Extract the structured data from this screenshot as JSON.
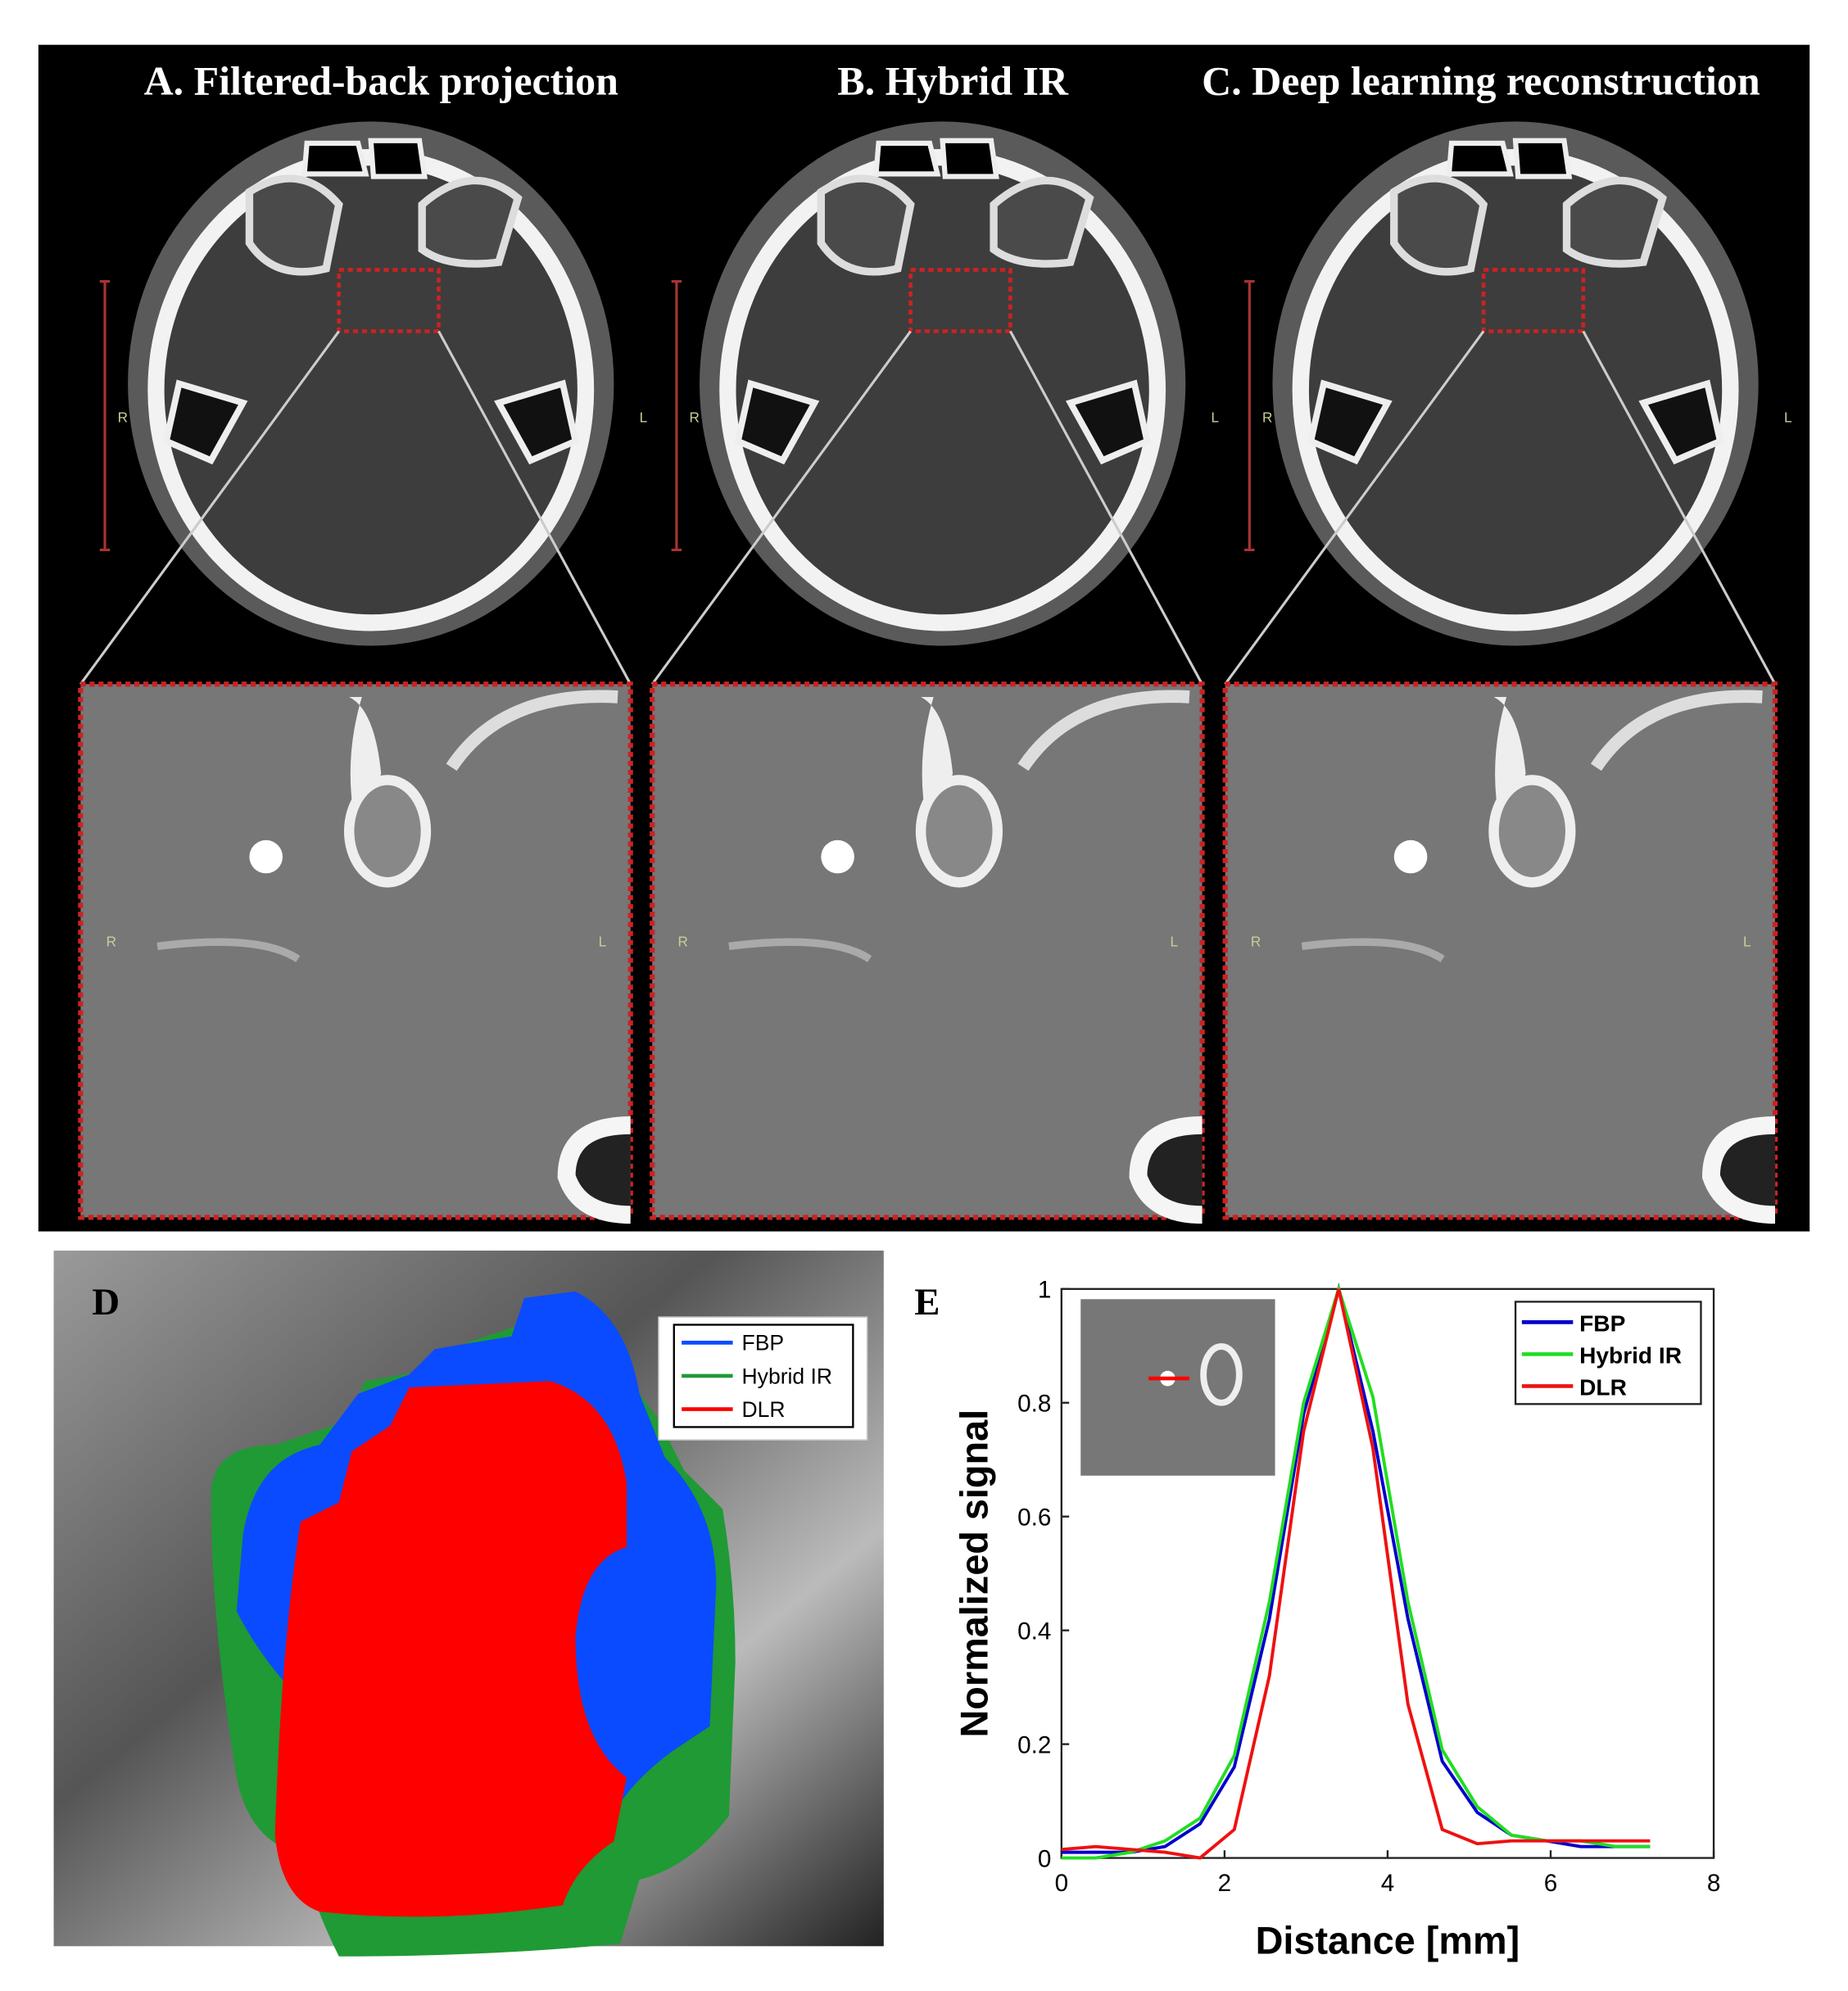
{
  "panels": {
    "a": "A. Filtered-back projection",
    "b": "B. Hybrid IR",
    "c": "C. Deep learning reconstruction",
    "d": "D",
    "e": "E"
  },
  "orientation": [
    "R",
    "L"
  ],
  "segmentation": {
    "series": [
      {
        "name": "FBP",
        "color": "#0a4bff"
      },
      {
        "name": "Hybrid IR",
        "color": "#1f9a35"
      },
      {
        "name": "DLR",
        "color": "#ff0000"
      }
    ]
  },
  "chart_data": {
    "type": "line",
    "xlabel": "Distance [mm]",
    "ylabel": "Normalized signal",
    "x": [
      0,
      0.42,
      0.85,
      1.27,
      1.7,
      2.12,
      2.55,
      2.97,
      3.4,
      3.82,
      4.25,
      4.67,
      5.1,
      5.52,
      5.95,
      6.37,
      6.8,
      7.22
    ],
    "series": [
      {
        "name": "FBP",
        "color": "#0000cc",
        "values": [
          0.01,
          0.01,
          0.01,
          0.02,
          0.06,
          0.16,
          0.42,
          0.78,
          1.0,
          0.75,
          0.42,
          0.17,
          0.08,
          0.04,
          0.03,
          0.02,
          0.02,
          0.02
        ]
      },
      {
        "name": "Hybrid IR",
        "color": "#22dd22",
        "values": [
          0.0,
          0.0,
          0.01,
          0.03,
          0.07,
          0.18,
          0.45,
          0.8,
          1.0,
          0.81,
          0.45,
          0.19,
          0.09,
          0.04,
          0.03,
          0.03,
          0.02,
          0.02
        ]
      },
      {
        "name": "DLR",
        "color": "#ee1111",
        "values": [
          0.015,
          0.02,
          0.015,
          0.01,
          0.0,
          0.05,
          0.32,
          0.75,
          1.0,
          0.72,
          0.27,
          0.05,
          0.025,
          0.03,
          0.03,
          0.03,
          0.03,
          0.03
        ]
      }
    ],
    "xlim": [
      0,
      8
    ],
    "ylim": [
      0,
      1
    ],
    "xticks": [
      0,
      2,
      4,
      6,
      8
    ],
    "yticks": [
      0,
      0.2,
      0.4,
      0.6,
      0.8,
      1
    ],
    "legend": "upper right"
  }
}
